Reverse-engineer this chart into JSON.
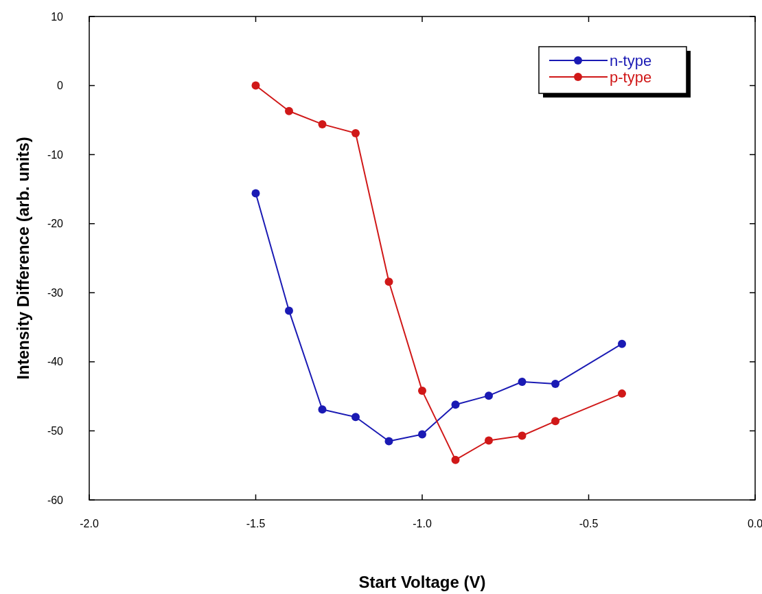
{
  "chart_data": {
    "type": "line",
    "xlabel": "Start Voltage (V)",
    "ylabel": "Intensity Difference (arb. units)",
    "xlim": [
      -2,
      0
    ],
    "xticks": [
      {
        "value": -2,
        "label": "-2.0"
      },
      {
        "value": -1.5,
        "label": "-1.5"
      },
      {
        "value": -1,
        "label": "-1.0"
      },
      {
        "value": -0.5,
        "label": "-0.5"
      },
      {
        "value": 0,
        "label": "0.0"
      }
    ],
    "ylim": [
      -60,
      10
    ],
    "yticks": [
      -60,
      -50,
      -40,
      -30,
      -20,
      -10,
      0,
      10
    ],
    "x": [
      -1.5,
      -1.4,
      -1.3,
      -1.2,
      -1.1,
      -1.0,
      -0.9,
      -0.8,
      -0.7,
      -0.6,
      -0.4
    ],
    "series": [
      {
        "name": "n-type",
        "color": "#1a1ab4",
        "values": [
          -15.6,
          -32.6,
          -46.9,
          -48.0,
          -51.5,
          -50.5,
          -46.2,
          -44.9,
          -42.9,
          -43.2,
          -37.4
        ]
      },
      {
        "name": "p-type",
        "color": "#d01818",
        "values": [
          0,
          -3.7,
          -5.6,
          -6.9,
          -28.4,
          -44.2,
          -54.2,
          -51.4,
          -50.7,
          -48.6,
          -44.6
        ]
      }
    ],
    "marker": "circle",
    "grid": false,
    "legend": "top right"
  }
}
